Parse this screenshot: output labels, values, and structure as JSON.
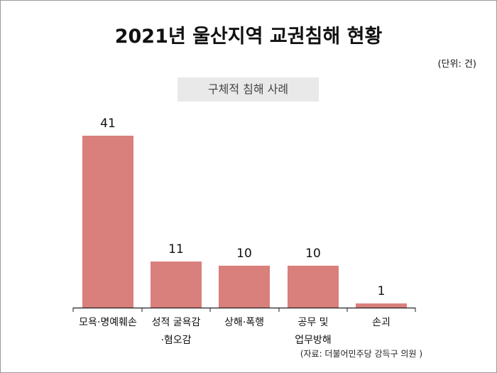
{
  "title": "2021년 울산지역 교권침해 현황",
  "unit": "(단위: 건)",
  "subtitle": "구체적 침해 사례",
  "source": "(자료: 더불어민주당 강득구 의원 )",
  "colors": {
    "bar": "#d97f7c",
    "axis": "#222222",
    "subtitle_bg": "#e9e9e9"
  },
  "chart_data": {
    "type": "bar",
    "title": "2021년 울산지역 교권침해 현황",
    "subtitle": "구체적 침해 사례",
    "categories": [
      [
        "모욕·명예훼손"
      ],
      [
        "성적 굴욕감",
        "·혐오감"
      ],
      [
        "상해·폭행"
      ],
      [
        "공무 및",
        "업무방해"
      ],
      [
        "손괴"
      ]
    ],
    "values": [
      41,
      11,
      10,
      10,
      1
    ],
    "ylim": [
      0,
      41
    ],
    "grid": false,
    "data_labels": true
  }
}
